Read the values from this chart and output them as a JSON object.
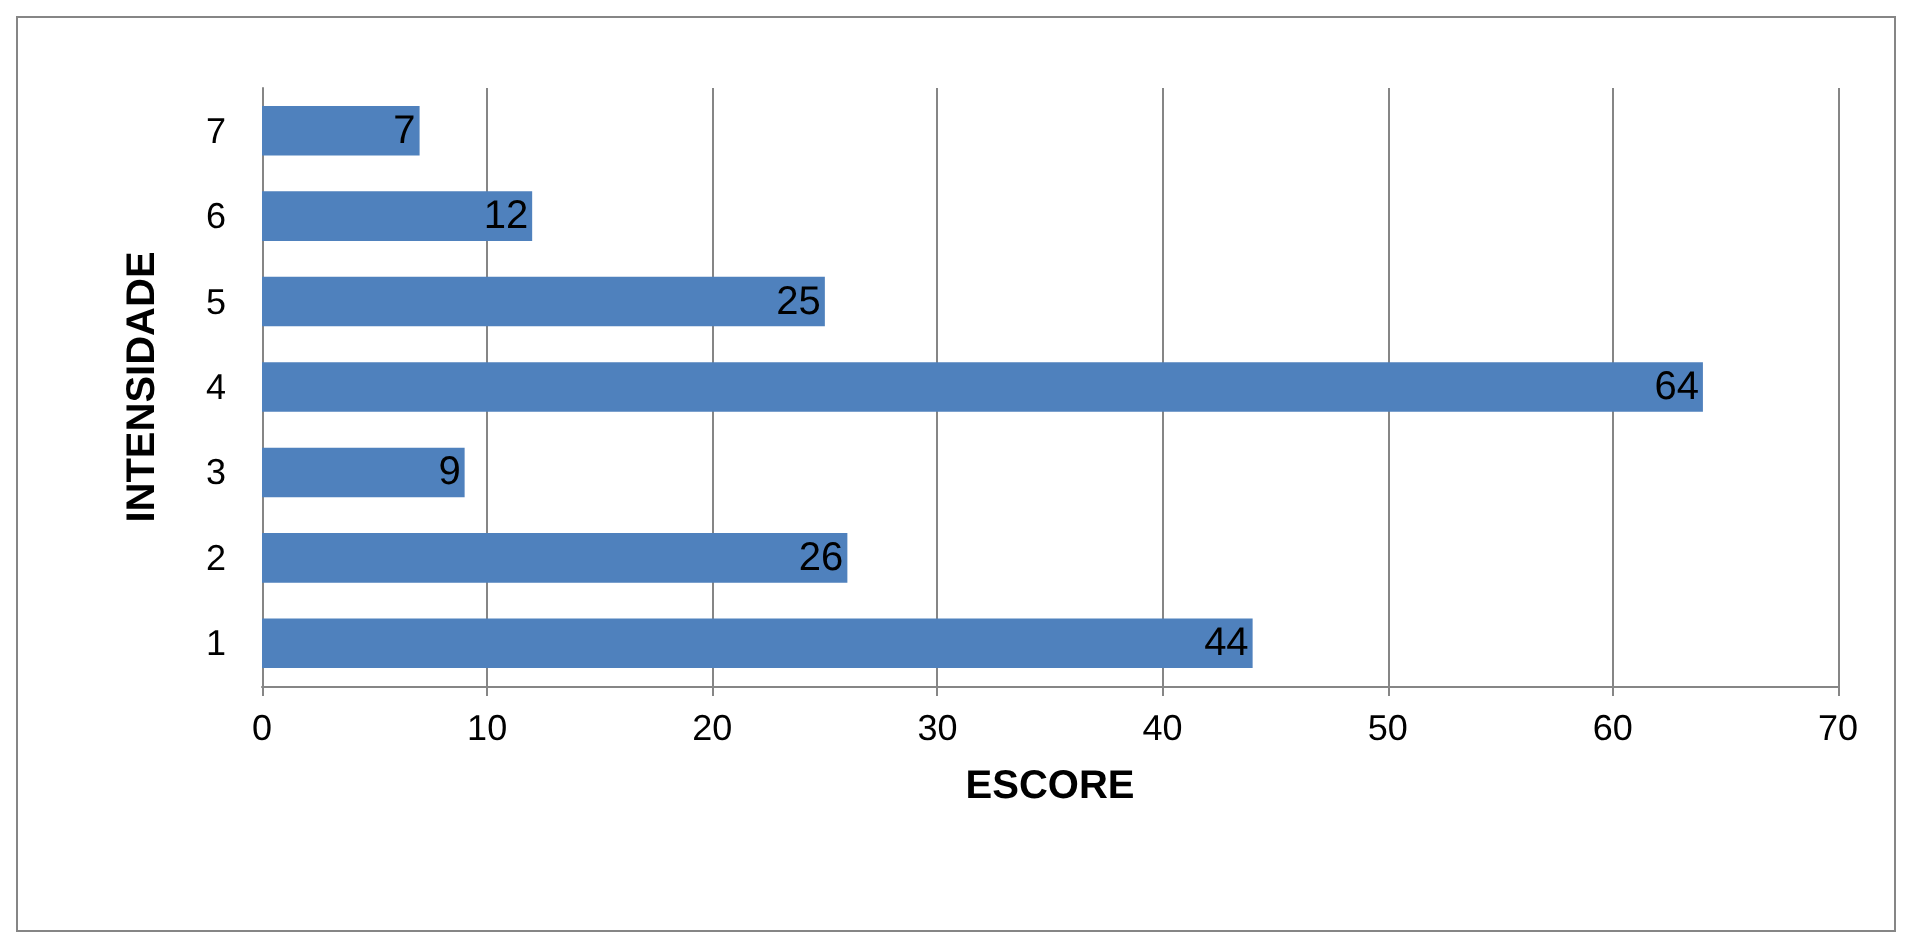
{
  "chart_data": {
    "type": "bar",
    "orientation": "horizontal",
    "xlabel": "ESCORE",
    "ylabel": "INTENSIDADE",
    "categories": [
      "7",
      "6",
      "5",
      "4",
      "3",
      "2",
      "1"
    ],
    "values": [
      7,
      12,
      25,
      64,
      9,
      26,
      44
    ],
    "color": "#4f81bd",
    "xlim": [
      0,
      70
    ],
    "xticks": [
      0,
      10,
      20,
      30,
      40,
      50,
      60,
      70
    ],
    "grid": "x",
    "data_labels": true
  }
}
